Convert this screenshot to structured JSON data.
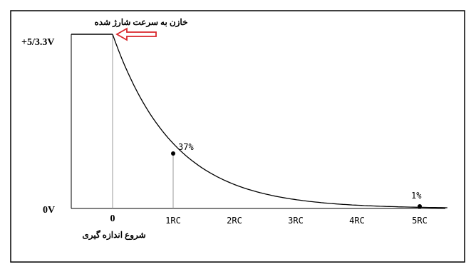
{
  "chart_data": {
    "type": "line",
    "title": "",
    "annotation_top": "خازن به سرعت شارژ شده",
    "annotation_bottom": "شروع اندازه گیری",
    "y_tick_labels": [
      "+5/3.3V",
      "0V"
    ],
    "x_tick_labels": [
      "0",
      "1RC",
      "2RC",
      "3RC",
      "4RC",
      "5RC"
    ],
    "x_values": [
      0,
      1,
      2,
      3,
      4,
      5
    ],
    "y_start_percent": 100,
    "points": [
      {
        "x": 1,
        "y_percent": 37,
        "label": "37%"
      },
      {
        "x": 5,
        "y_percent": 1,
        "label": "1%"
      }
    ],
    "curve": "exponential decay from 100% at 0 to ~1% at 5RC",
    "colors": {
      "curve": "#000000",
      "arrow": "#d9262b",
      "guide": "#999999"
    }
  }
}
